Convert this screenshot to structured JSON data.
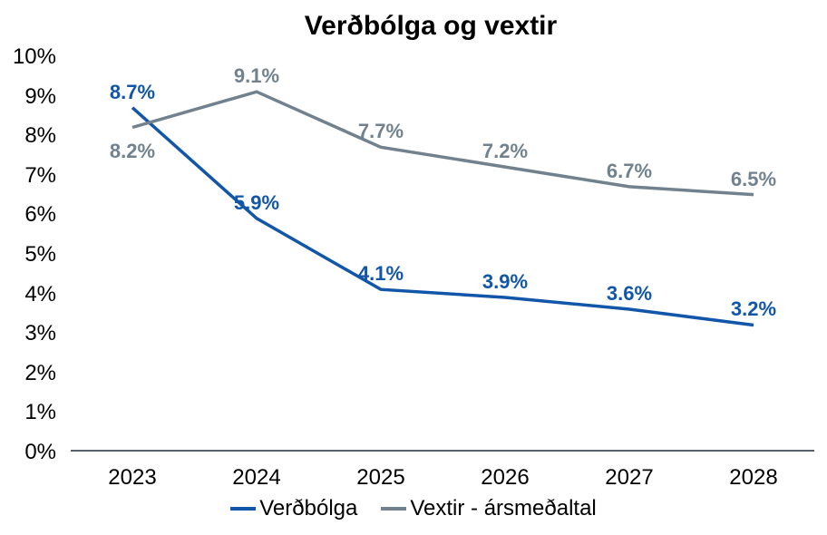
{
  "chart_data": {
    "type": "line",
    "title": "Verðbólga og vextir",
    "categories": [
      "2023",
      "2024",
      "2025",
      "2026",
      "2027",
      "2028"
    ],
    "series": [
      {
        "name": "Verðbólga",
        "color": "#1156A8",
        "values": [
          8.7,
          5.9,
          4.1,
          3.9,
          3.6,
          3.2
        ],
        "labels": [
          "8.7%",
          "5.9%",
          "4.1%",
          "3.9%",
          "3.6%",
          "3.2%"
        ],
        "label_positions": [
          "above",
          "above",
          "above",
          "above",
          "above",
          "above"
        ]
      },
      {
        "name": "Vextir - ársmeðaltal",
        "color": "#71828E",
        "values": [
          8.2,
          9.1,
          7.7,
          7.2,
          6.7,
          6.5
        ],
        "labels": [
          "8.2%",
          "9.1%",
          "7.7%",
          "7.2%",
          "6.7%",
          "6.5%"
        ],
        "label_positions": [
          "below",
          "above",
          "above",
          "above",
          "above",
          "above"
        ]
      }
    ],
    "xlabel": "",
    "ylabel": "",
    "ylim": [
      0,
      10
    ],
    "y_ticks": [
      "0%",
      "1%",
      "2%",
      "3%",
      "4%",
      "5%",
      "6%",
      "7%",
      "8%",
      "9%",
      "10%"
    ],
    "grid": false,
    "legend_position": "bottom",
    "axis_line_color": "#3E4C58",
    "tick_label_color": "#000000"
  }
}
